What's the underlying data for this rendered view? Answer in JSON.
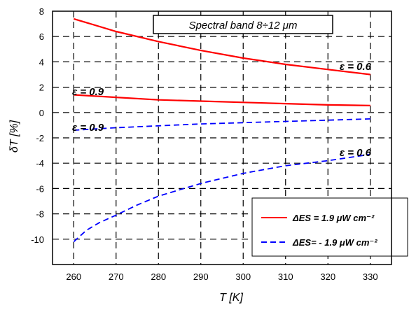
{
  "chart_data": {
    "type": "line",
    "title": "Spectral band  8÷12 μm",
    "xlabel": "T [K]",
    "ylabel": "δT  [%]",
    "xlim": [
      255,
      335
    ],
    "ylim": [
      -12,
      8
    ],
    "xticks": [
      260,
      270,
      280,
      290,
      300,
      310,
      320,
      330
    ],
    "yticks": [
      -10,
      -8,
      -6,
      -4,
      -2,
      0,
      2,
      4,
      6,
      8
    ],
    "grid": true,
    "legend_position": "bottom-right",
    "series": [
      {
        "name": "ΔES = 1.9 μW cm⁻²",
        "color": "#ff0000",
        "style": "solid",
        "label": "ε = 0.6",
        "x": [
          260,
          270,
          280,
          290,
          300,
          310,
          320,
          330
        ],
        "y": [
          7.4,
          6.4,
          5.6,
          4.9,
          4.3,
          3.8,
          3.4,
          3.0
        ]
      },
      {
        "name": "ΔES = 1.9 μW cm⁻²",
        "color": "#ff0000",
        "style": "solid",
        "label": "ε = 0.9",
        "x": [
          260,
          270,
          280,
          290,
          300,
          310,
          320,
          330
        ],
        "y": [
          1.4,
          1.2,
          1.0,
          0.9,
          0.8,
          0.7,
          0.6,
          0.55
        ]
      },
      {
        "name": "ΔES = - 1.9 μW cm⁻²",
        "color": "#0000ff",
        "style": "dashed",
        "label": "ε = 0.9",
        "x": [
          260,
          270,
          280,
          290,
          300,
          310,
          320,
          330
        ],
        "y": [
          -1.4,
          -1.2,
          -1.05,
          -0.9,
          -0.8,
          -0.7,
          -0.6,
          -0.5
        ]
      },
      {
        "name": "ΔES = - 1.9 μW cm⁻²",
        "color": "#0000ff",
        "style": "dashed",
        "label": "ε = 0.6",
        "x": [
          260,
          263,
          266,
          270,
          275,
          280,
          285,
          290,
          295,
          300,
          305,
          310,
          315,
          320,
          325,
          330
        ],
        "y": [
          -10.2,
          -9.3,
          -8.7,
          -8.1,
          -7.3,
          -6.6,
          -6.1,
          -5.6,
          -5.2,
          -4.8,
          -4.5,
          -4.2,
          -4.0,
          -3.8,
          -3.55,
          -3.3
        ]
      }
    ],
    "legend": [
      {
        "text": "ΔES = 1.9 μW cm⁻²",
        "color": "#ff0000",
        "style": "solid"
      },
      {
        "text": "ΔES= - 1.9 μW cm⁻²",
        "color": "#0000ff",
        "style": "dashed"
      }
    ]
  }
}
